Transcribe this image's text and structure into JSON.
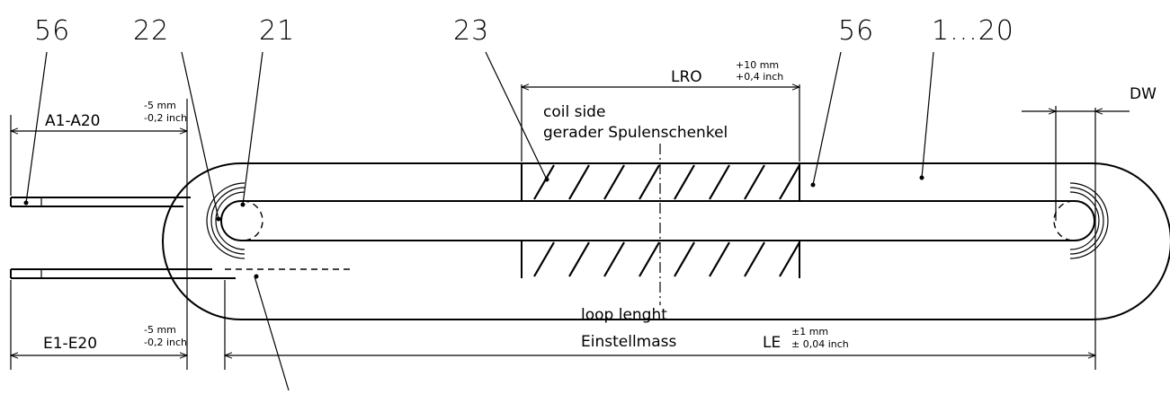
{
  "callouts": {
    "c56_left": "56",
    "c22": "22",
    "c21": "21",
    "c23": "23",
    "c56_right": "56",
    "c1_20": "1...20"
  },
  "dimensions": {
    "lro": {
      "label": "LRO",
      "tol_upper": "+10 mm",
      "tol_lower": "+0,4 inch"
    },
    "a": {
      "label": "A1-A20",
      "tol_upper": "-5 mm",
      "tol_lower": "-0,2 inch"
    },
    "e": {
      "label": "E1-E20",
      "tol_upper": "-5 mm",
      "tol_lower": "-0,2 inch"
    },
    "le": {
      "label": "LE",
      "tol_upper": "±1 mm",
      "tol_lower": "± 0,04 inch"
    },
    "dw": {
      "label": "DW"
    }
  },
  "notes": {
    "coil_side_en": "coil side",
    "coil_side_de": "gerader Spulenschenkel",
    "loop_en": "loop lenght",
    "loop_de": "Einstellmass"
  }
}
